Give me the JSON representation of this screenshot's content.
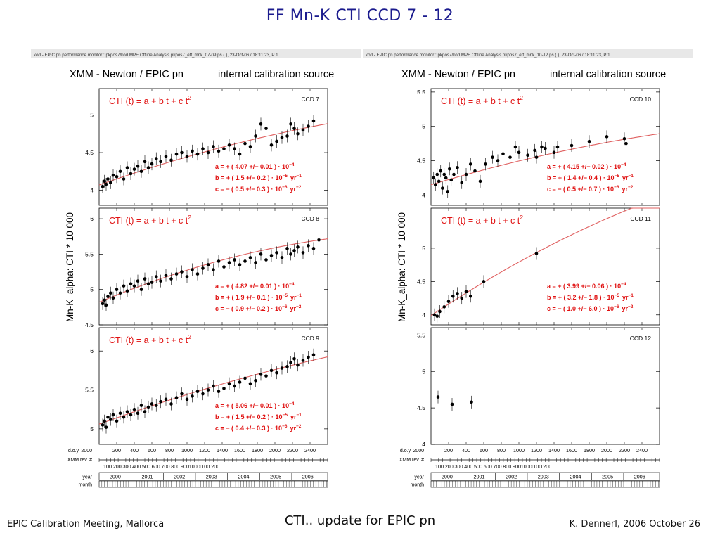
{
  "slide": {
    "title": "FF   Mn-K   CTI   CCD 7 - 12",
    "footer_left": "EPIC Calibration Meeting, Mallorca",
    "footer_center": "CTI.. update for EPIC pn",
    "footer_right": "K. Dennerl, 2006 October 26"
  },
  "colors": {
    "fit": "#e06060",
    "formula": "#e01010",
    "points": "#000000",
    "title": "#1b1b8e"
  },
  "chart_data": [
    {
      "type": "scatter",
      "header": "kod - EPIC pn performance monitor : pkpos7/kod     MPE  Offline Analysis     pkpos7_eff_mnk_07-09.ps ( ), 23-Oct-06 / 18:11:23, P   1",
      "title_left": "XMM - Newton  /  EPIC pn",
      "title_right": "internal calibration source",
      "ylabel": "Mn-K_alpha:  CTI * 10 000",
      "x_axis": {
        "doy_label": "d.o.y. 2000",
        "doy_ticks": [
          "200",
          "400",
          "600",
          "800",
          "1000",
          "1200",
          "1400",
          "1600",
          "1800",
          "2000",
          "2200",
          "2400"
        ],
        "rev_label": "XMM rev. #",
        "rev_ticks": [
          "100",
          "200",
          "300",
          "400",
          "500",
          "600",
          "700",
          "800",
          "900",
          "1000",
          "1100",
          "1200"
        ],
        "year_label": "year",
        "years": [
          "2000",
          "2001",
          "2002",
          "2003",
          "2004",
          "2005",
          "2006"
        ],
        "month_label": "month",
        "xlim": [
          0,
          2600
        ]
      },
      "panels": [
        {
          "ccd": "CCD  7",
          "formula": "CTI (t)  =  a + b t + c t",
          "formula_sup": "2",
          "ylim": [
            3.8,
            5.35
          ],
          "yticks": [
            "4",
            "4.5",
            "5"
          ],
          "a": 4.07,
          "b": 1.5,
          "c": -0.5,
          "a_text": "a  =  + ( 4.07 +/− 0.01 ) · 10",
          "a_exp": "−4",
          "a_unit": "",
          "b_text": "b  =  + ( 1.5 +/− 0.2 ) · 10",
          "b_exp": "−5",
          "b_unit": "yr",
          "b_unit_exp": "−1",
          "c_text": "c  =  − ( 0.5 +/− 0.3 ) · 10",
          "c_exp": "−6",
          "c_unit": "yr",
          "c_unit_exp": "−2",
          "x": [
            40,
            60,
            80,
            100,
            130,
            160,
            200,
            240,
            280,
            320,
            360,
            400,
            440,
            480,
            520,
            560,
            600,
            650,
            700,
            760,
            820,
            880,
            940,
            1000,
            1060,
            1120,
            1180,
            1240,
            1300,
            1360,
            1420,
            1480,
            1540,
            1600,
            1660,
            1720,
            1780,
            1840,
            1900,
            1960,
            2020,
            2080,
            2140,
            2180,
            2220,
            2260,
            2320,
            2380,
            2440
          ],
          "y": [
            4.05,
            4.12,
            4.08,
            4.15,
            4.1,
            4.2,
            4.18,
            4.25,
            4.15,
            4.3,
            4.22,
            4.28,
            4.32,
            4.25,
            4.38,
            4.3,
            4.35,
            4.42,
            4.38,
            4.45,
            4.4,
            4.48,
            4.5,
            4.45,
            4.52,
            4.48,
            4.55,
            4.5,
            4.58,
            4.52,
            4.55,
            4.6,
            4.55,
            4.48,
            4.62,
            4.58,
            4.72,
            4.88,
            4.82,
            4.6,
            4.65,
            4.7,
            4.72,
            4.88,
            4.82,
            4.75,
            4.8,
            4.85,
            4.92
          ]
        },
        {
          "ccd": "CCD  8",
          "formula": "CTI (t)  =  a + b t + c t",
          "formula_sup": "2",
          "ylim": [
            4.5,
            6.15
          ],
          "yticks": [
            "4.5",
            "5",
            "5.5",
            "6"
          ],
          "a": 4.82,
          "b": 1.9,
          "c": -0.9,
          "a_text": "a  =  + ( 4.82 +/− 0.01 ) · 10",
          "a_exp": "−4",
          "a_unit": "",
          "b_text": "b  =  + ( 1.9 +/− 0.1 ) · 10",
          "b_exp": "−5",
          "b_unit": "yr",
          "b_unit_exp": "−1",
          "c_text": "c  =  − ( 0.9 +/− 0.2 ) · 10",
          "c_exp": "−6",
          "c_unit": "yr",
          "c_unit_exp": "−2",
          "x": [
            40,
            60,
            80,
            100,
            130,
            160,
            200,
            240,
            280,
            320,
            360,
            400,
            440,
            480,
            520,
            560,
            600,
            650,
            700,
            760,
            820,
            880,
            940,
            1000,
            1060,
            1120,
            1180,
            1240,
            1300,
            1360,
            1420,
            1480,
            1540,
            1600,
            1660,
            1720,
            1780,
            1840,
            1900,
            1960,
            2020,
            2080,
            2140,
            2180,
            2220,
            2260,
            2320,
            2380,
            2440,
            2500
          ],
          "y": [
            4.8,
            4.85,
            4.78,
            4.9,
            4.95,
            4.88,
            5.0,
            4.95,
            5.05,
            4.98,
            5.08,
            5.05,
            5.12,
            5.0,
            5.15,
            5.08,
            5.1,
            5.18,
            5.12,
            5.2,
            5.15,
            5.22,
            5.25,
            5.18,
            5.28,
            5.22,
            5.3,
            5.35,
            5.28,
            5.4,
            5.32,
            5.38,
            5.42,
            5.35,
            5.4,
            5.45,
            5.38,
            5.5,
            5.42,
            5.48,
            5.52,
            5.45,
            5.58,
            5.5,
            5.55,
            5.6,
            5.52,
            5.62,
            5.58,
            5.7
          ]
        },
        {
          "ccd": "CCD  9",
          "formula": "CTI (t)  =  a + b t + c t",
          "formula_sup": "2",
          "ylim": [
            4.8,
            6.3
          ],
          "yticks": [
            "5",
            "5.5",
            "6"
          ],
          "a": 5.06,
          "b": 1.5,
          "c": -0.4,
          "a_text": "a  =  + ( 5.06 +/− 0.01 ) · 10",
          "a_exp": "−4",
          "a_unit": "",
          "b_text": "b  =  + ( 1.5 +/− 0.2 ) · 10",
          "b_exp": "−5",
          "b_unit": "yr",
          "b_unit_exp": "−1",
          "c_text": "c  =  − ( 0.4 +/− 0.3 ) · 10",
          "c_exp": "−6",
          "c_unit": "yr",
          "c_unit_exp": "−2",
          "x": [
            40,
            60,
            80,
            100,
            130,
            160,
            200,
            240,
            280,
            320,
            360,
            400,
            440,
            480,
            520,
            560,
            600,
            650,
            700,
            760,
            820,
            880,
            940,
            1000,
            1060,
            1120,
            1180,
            1240,
            1300,
            1360,
            1420,
            1480,
            1540,
            1600,
            1660,
            1720,
            1780,
            1840,
            1900,
            1960,
            2020,
            2080,
            2140,
            2180,
            2220,
            2260,
            2320,
            2380,
            2440
          ],
          "y": [
            5.05,
            5.1,
            5.02,
            5.15,
            5.12,
            5.18,
            5.1,
            5.2,
            5.15,
            5.22,
            5.18,
            5.25,
            5.2,
            5.3,
            5.22,
            5.28,
            5.32,
            5.3,
            5.35,
            5.38,
            5.32,
            5.4,
            5.45,
            5.38,
            5.42,
            5.48,
            5.45,
            5.5,
            5.55,
            5.48,
            5.52,
            5.58,
            5.55,
            5.6,
            5.65,
            5.58,
            5.62,
            5.7,
            5.68,
            5.75,
            5.72,
            5.78,
            5.8,
            5.85,
            5.9,
            5.82,
            5.88,
            5.92,
            5.95
          ]
        }
      ]
    },
    {
      "type": "scatter",
      "header": "kod - EPIC pn performance monitor : pkpos7/kod     MPE  Offline Analysis     pkpos7_eff_mnk_10-12.ps ( ), 23-Oct-06 / 18:11:23, P   1",
      "title_left": "XMM - Newton  /  EPIC pn",
      "title_right": "internal calibration source",
      "ylabel": "Mn-K_alpha:  CTI * 10 000",
      "x_axis": {
        "doy_label": "d.o.y. 2000",
        "doy_ticks": [
          "200",
          "400",
          "600",
          "800",
          "1000",
          "1200",
          "1400",
          "1600",
          "1800",
          "2000",
          "2200",
          "2400"
        ],
        "rev_label": "XMM rev. #",
        "rev_ticks": [
          "100",
          "200",
          "300",
          "400",
          "500",
          "600",
          "700",
          "800",
          "900",
          "1000",
          "1100",
          "1200"
        ],
        "year_label": "year",
        "years": [
          "2000",
          "2001",
          "2002",
          "2003",
          "2004",
          "2005",
          "2006"
        ],
        "month_label": "month",
        "xlim": [
          0,
          2600
        ]
      },
      "panels": [
        {
          "ccd": "CCD  10",
          "formula": "CTI (t)  =  a + b t + c t",
          "formula_sup": "2",
          "ylim": [
            3.85,
            5.55
          ],
          "yticks": [
            "4",
            "4.5",
            "5",
            "5.5"
          ],
          "a": 4.15,
          "b": 1.4,
          "c": -0.5,
          "a_text": "a  =  + ( 4.15 +/− 0.02 ) · 10",
          "a_exp": "−4",
          "a_unit": "",
          "b_text": "b  =  + ( 1.4 +/− 0.4 ) · 10",
          "b_exp": "−5",
          "b_unit": "yr",
          "b_unit_exp": "−1",
          "c_text": "c  =  − ( 0.5 +/− 0.7 ) · 10",
          "c_exp": "−6",
          "c_unit": "yr",
          "c_unit_exp": "−2",
          "x": [
            30,
            50,
            70,
            90,
            110,
            130,
            150,
            170,
            190,
            210,
            230,
            260,
            300,
            350,
            400,
            450,
            500,
            560,
            620,
            700,
            760,
            820,
            900,
            960,
            1000,
            1100,
            1180,
            1200,
            1260,
            1300,
            1400,
            1440,
            1600,
            1800,
            2000,
            2200,
            2220
          ],
          "y": [
            4.25,
            4.15,
            4.3,
            4.2,
            4.35,
            4.1,
            4.3,
            4.25,
            4.05,
            4.38,
            4.22,
            4.3,
            4.4,
            4.18,
            4.3,
            4.45,
            4.35,
            4.2,
            4.45,
            4.55,
            4.5,
            4.6,
            4.55,
            4.7,
            4.62,
            4.58,
            4.65,
            4.55,
            4.7,
            4.68,
            4.62,
            4.7,
            4.72,
            4.78,
            4.85,
            4.82,
            4.75
          ]
        },
        {
          "ccd": "CCD  11",
          "formula": "CTI (t)  =  a + b t + c t",
          "formula_sup": "2",
          "ylim": [
            3.85,
            5.6
          ],
          "yticks": [
            "4",
            "4.5",
            "5"
          ],
          "a": 3.99,
          "b": 3.2,
          "c": -1.0,
          "a_text": "a  =  + ( 3.99 +/− 0.06 ) · 10",
          "a_exp": "−4",
          "a_unit": "",
          "b_text": "b  =  + ( 3.2 +/− 1.8 ) · 10",
          "b_exp": "−5",
          "b_unit": "yr",
          "b_unit_exp": "−1",
          "c_text": "c  =  − ( 1.0 +/− 6.0 ) · 10",
          "c_exp": "−6",
          "c_unit": "yr",
          "c_unit_exp": "−2",
          "x": [
            40,
            70,
            100,
            150,
            200,
            250,
            300,
            350,
            400,
            450,
            600,
            1200
          ],
          "y": [
            4.0,
            3.98,
            4.05,
            4.12,
            4.2,
            4.28,
            4.32,
            4.25,
            4.35,
            4.28,
            4.5,
            4.92
          ]
        },
        {
          "ccd": "CCD  12",
          "formula": "",
          "formula_sup": "",
          "ylim": [
            4.0,
            5.6
          ],
          "yticks": [
            "4",
            "4.5",
            "5",
            "5.5"
          ],
          "a_text": "",
          "a_exp": "",
          "a_unit": "",
          "b_text": "",
          "b_exp": "",
          "b_unit": "",
          "b_unit_exp": "",
          "c_text": "",
          "c_exp": "",
          "c_unit": "",
          "c_unit_exp": "",
          "x": [
            80,
            240,
            460
          ],
          "y": [
            4.65,
            4.55,
            4.58
          ]
        }
      ]
    }
  ]
}
